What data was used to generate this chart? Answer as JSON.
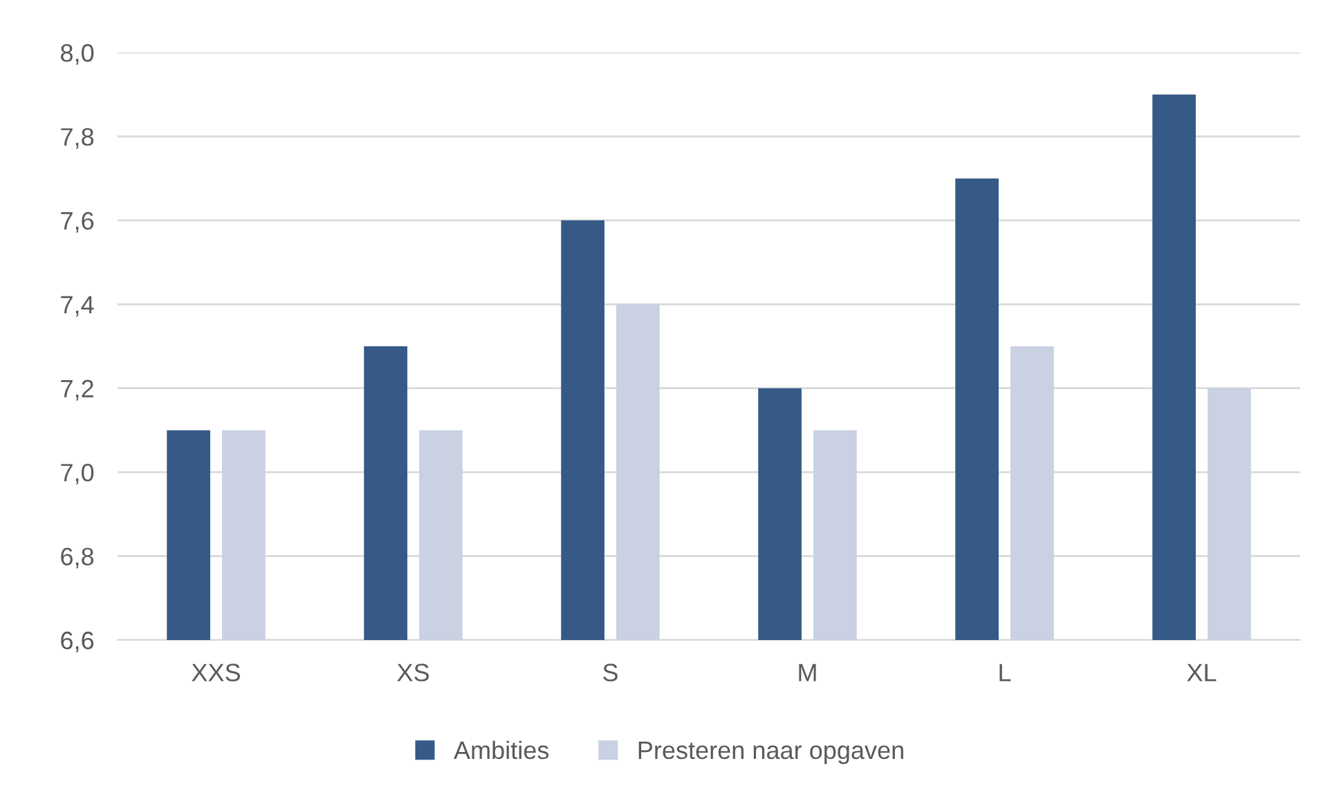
{
  "chart_data": {
    "type": "bar",
    "categories": [
      "XXS",
      "XS",
      "S",
      "M",
      "L",
      "XL"
    ],
    "series": [
      {
        "name": "Ambities",
        "color": "#355a86",
        "values": [
          7.1,
          7.3,
          7.6,
          7.2,
          7.7,
          7.9
        ]
      },
      {
        "name": "Presteren naar opgaven",
        "color": "#c9d1e3",
        "values": [
          7.1,
          7.1,
          7.4,
          7.1,
          7.3,
          7.2
        ]
      }
    ],
    "ylim": [
      6.6,
      8.0
    ],
    "yticks": [
      {
        "value": 6.6,
        "label": "6,6"
      },
      {
        "value": 6.8,
        "label": "6,8"
      },
      {
        "value": 7.0,
        "label": "7,0"
      },
      {
        "value": 7.2,
        "label": "7,2"
      },
      {
        "value": 7.4,
        "label": "7,4"
      },
      {
        "value": 7.6,
        "label": "7,6"
      },
      {
        "value": 7.8,
        "label": "7,8"
      },
      {
        "value": 8.0,
        "label": "8,0"
      }
    ],
    "grid": "y",
    "legend": "bottom"
  }
}
